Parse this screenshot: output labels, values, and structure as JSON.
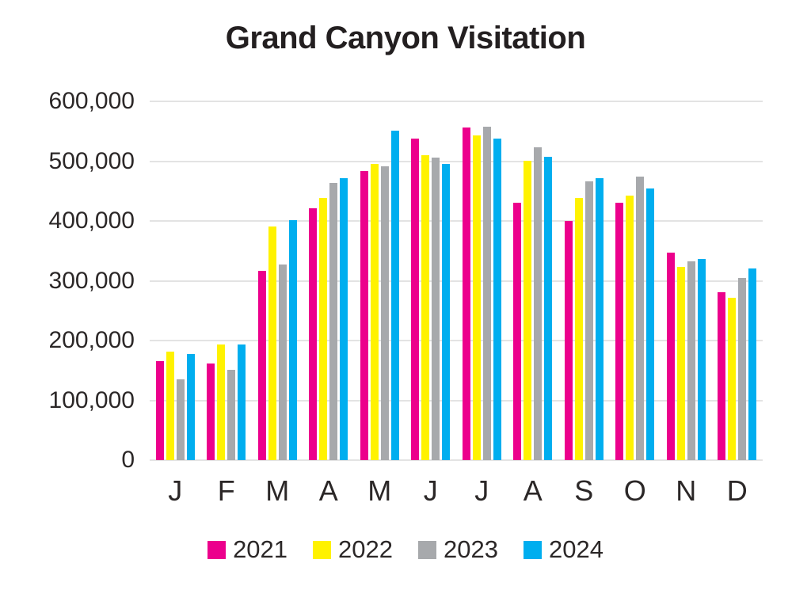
{
  "title": "Grand Canyon Visitation",
  "chart_data": {
    "type": "bar",
    "title": "Grand Canyon Visitation",
    "categories": [
      "J",
      "F",
      "M",
      "A",
      "M",
      "J",
      "J",
      "A",
      "S",
      "O",
      "N",
      "D"
    ],
    "series": [
      {
        "name": "2021",
        "color": "#EC008C",
        "values": [
          165000,
          162000,
          317000,
          421000,
          484000,
          538000,
          556000,
          431000,
          400000,
          430000,
          347000,
          281000
        ]
      },
      {
        "name": "2022",
        "color": "#FFF200",
        "values": [
          181000,
          194000,
          391000,
          438000,
          496000,
          510000,
          543000,
          501000,
          439000,
          443000,
          323000,
          272000
        ]
      },
      {
        "name": "2023",
        "color": "#A7A9AC",
        "values": [
          135000,
          151000,
          327000,
          463000,
          491000,
          506000,
          558000,
          523000,
          466000,
          474000,
          332000,
          305000
        ]
      },
      {
        "name": "2024",
        "color": "#00AEEF",
        "values": [
          177000,
          194000,
          402000,
          472000,
          551000,
          496000,
          538000,
          508000,
          472000,
          455000,
          336000,
          321000
        ]
      }
    ],
    "xlabel": "",
    "ylabel": "",
    "ylim": [
      0,
      600000
    ],
    "ytick_step": 100000,
    "ytick_labels": [
      "600,000",
      "500,000",
      "400,000",
      "300,000",
      "200,000",
      "100,000",
      "0"
    ],
    "grid": true,
    "gridline_color": "#e3e3e3",
    "text_color": "#231f20",
    "legend_position": "bottom"
  }
}
